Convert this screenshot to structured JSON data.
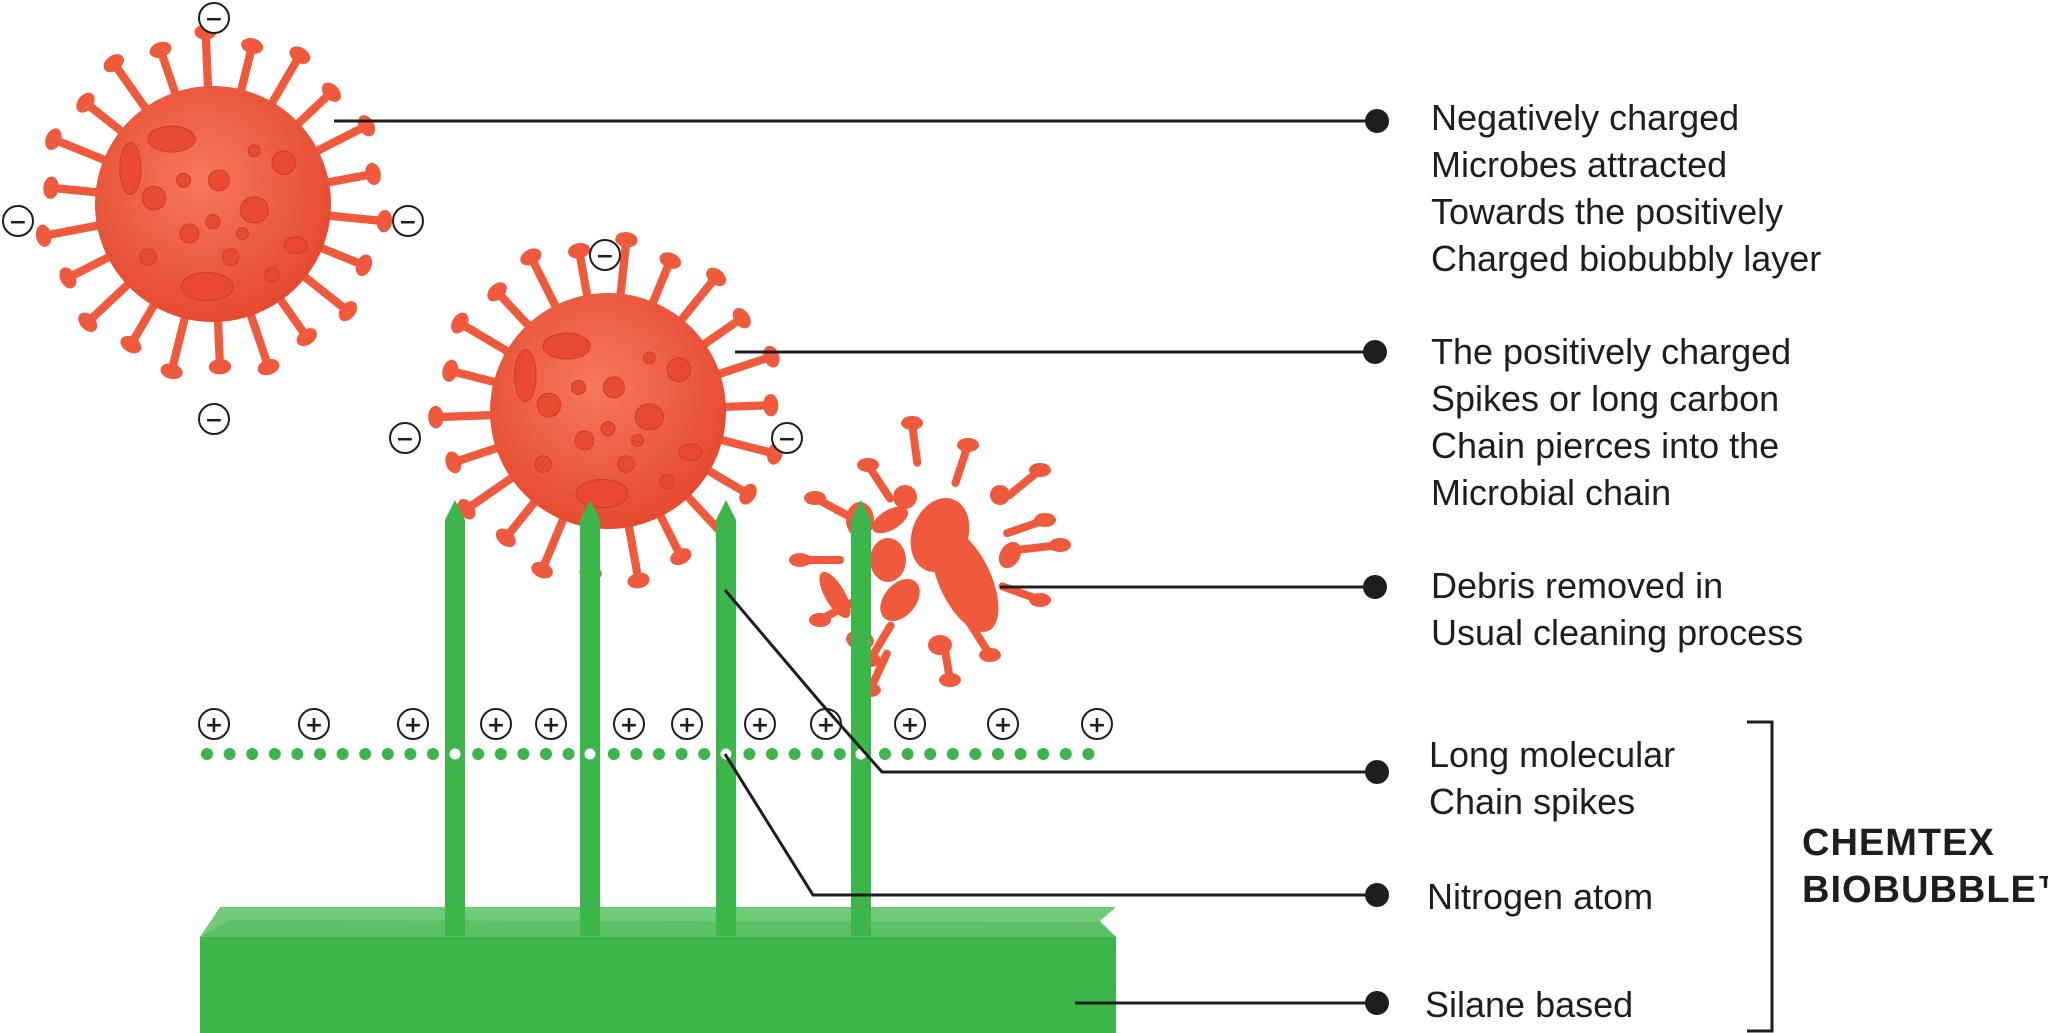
{
  "callouts": [
    {
      "id": "negative-microbes",
      "lines": [
        "Negatively charged",
        "Microbes attracted",
        "Towards the positively",
        "Charged biobubbly layer"
      ]
    },
    {
      "id": "spikes-pierce",
      "lines": [
        "The positively charged",
        "Spikes or long carbon",
        "Chain pierces into the",
        "Microbial chain"
      ]
    },
    {
      "id": "debris",
      "lines": [
        "Debris removed in",
        "Usual cleaning process"
      ]
    },
    {
      "id": "molecular-chain",
      "lines": [
        "Long molecular",
        "Chain spikes"
      ]
    },
    {
      "id": "nitrogen",
      "lines": [
        "Nitrogen atom"
      ]
    },
    {
      "id": "silane",
      "lines": [
        "Silane based"
      ]
    }
  ],
  "brand": {
    "line1": "CHEMTEX",
    "line2": "BIOBUBBLE™"
  },
  "charges": {
    "negative": "−",
    "positive": "+"
  },
  "colors": {
    "virus": "#f05a3c",
    "virus_dark": "#d9432a",
    "virus_spot": "#e8472e",
    "green": "#3cb54a",
    "green_light": "#6fcb77",
    "line": "#1e1e1e"
  },
  "icons": {
    "virus": "coronavirus-icon",
    "broken_virus": "virus-debris-icon",
    "pointer": "bullet-dot"
  }
}
